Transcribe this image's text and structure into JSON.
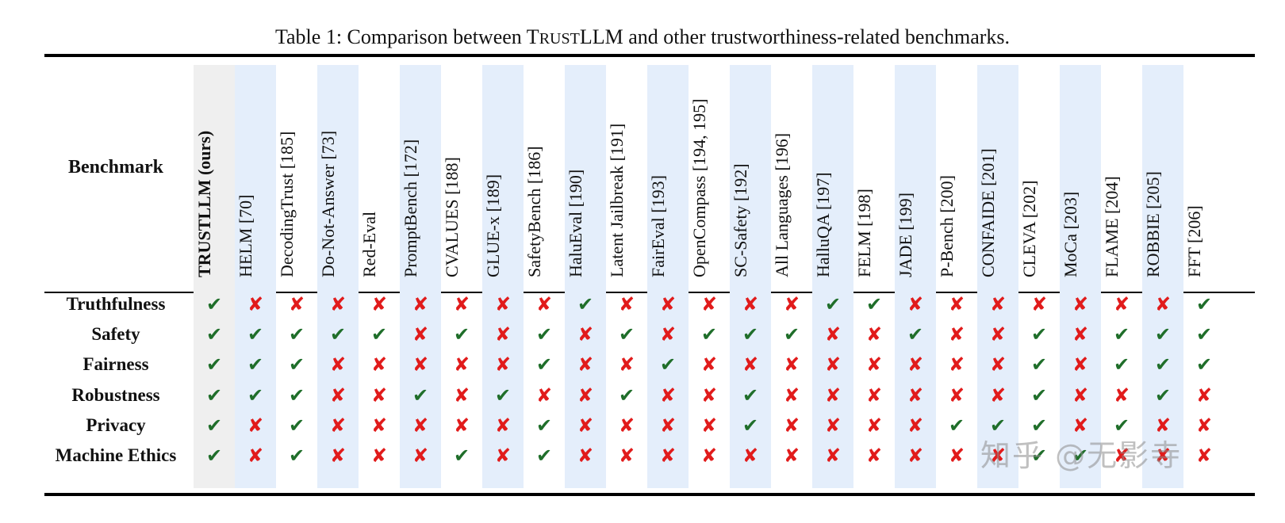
{
  "caption": {
    "prefix": "Table 1: Comparison between T",
    "smallcaps": "RUST",
    "suffix": "LLM and other trustworthiness-related benchmarks."
  },
  "header_label": "Benchmark",
  "columns": [
    {
      "name": "TRUSTLLM (ours)",
      "ours": true
    },
    {
      "name": "HELM [70]"
    },
    {
      "name": "DecodingTrust [185]"
    },
    {
      "name": "Do-Not-Answer [73]"
    },
    {
      "name": "Red-Eval"
    },
    {
      "name": "PromptBench [172]"
    },
    {
      "name": "CVALUES [188]"
    },
    {
      "name": "GLUE-x [189]"
    },
    {
      "name": "SafetyBench [186]"
    },
    {
      "name": "HaluEval [190]"
    },
    {
      "name": "Latent Jailbreak [191]"
    },
    {
      "name": "FairEval [193]"
    },
    {
      "name": "OpenCompass [194, 195]"
    },
    {
      "name": "SC-Safety [192]"
    },
    {
      "name": "All Languages [196]"
    },
    {
      "name": "HalluQA [197]"
    },
    {
      "name": "FELM [198]"
    },
    {
      "name": "JADE [199]"
    },
    {
      "name": "P-Bench [200]"
    },
    {
      "name": "CONFAIDE [201]"
    },
    {
      "name": "CLEVA [202]"
    },
    {
      "name": "MoCa [203]"
    },
    {
      "name": "FLAME [204]"
    },
    {
      "name": "ROBBIE [205]"
    },
    {
      "name": "FFT [206]"
    }
  ],
  "rows": [
    {
      "label": "Truthfulness",
      "marks": "YNNNNNNNNYNNNNNYYNNNNNNNY"
    },
    {
      "label": "Safety",
      "marks": "YYYYYNYNYNYNYYYNNYNNYNYYY"
    },
    {
      "label": "Fairness",
      "marks": "YYYNNNNNYNNYNNNNNNNNYNYYY"
    },
    {
      "label": "Robustness",
      "marks": "YYYNNYNYNNYNNYNNNNNNYNNYN"
    },
    {
      "label": "Privacy",
      "marks": "YNYNNNNNYNNNNYNNNNYYYNYNN"
    },
    {
      "label": "Machine Ethics",
      "marks": "YNYNNNYNYNNNNNNNNNNNYYNNN"
    }
  ],
  "symbols": {
    "yes": "✔",
    "no": "✘"
  },
  "colors": {
    "yes": "#1f6e2a",
    "no": "#e11b1b",
    "shade": "#e4eefb",
    "ours_shade": "#efefef"
  },
  "watermark": "知乎 @无影寺"
}
